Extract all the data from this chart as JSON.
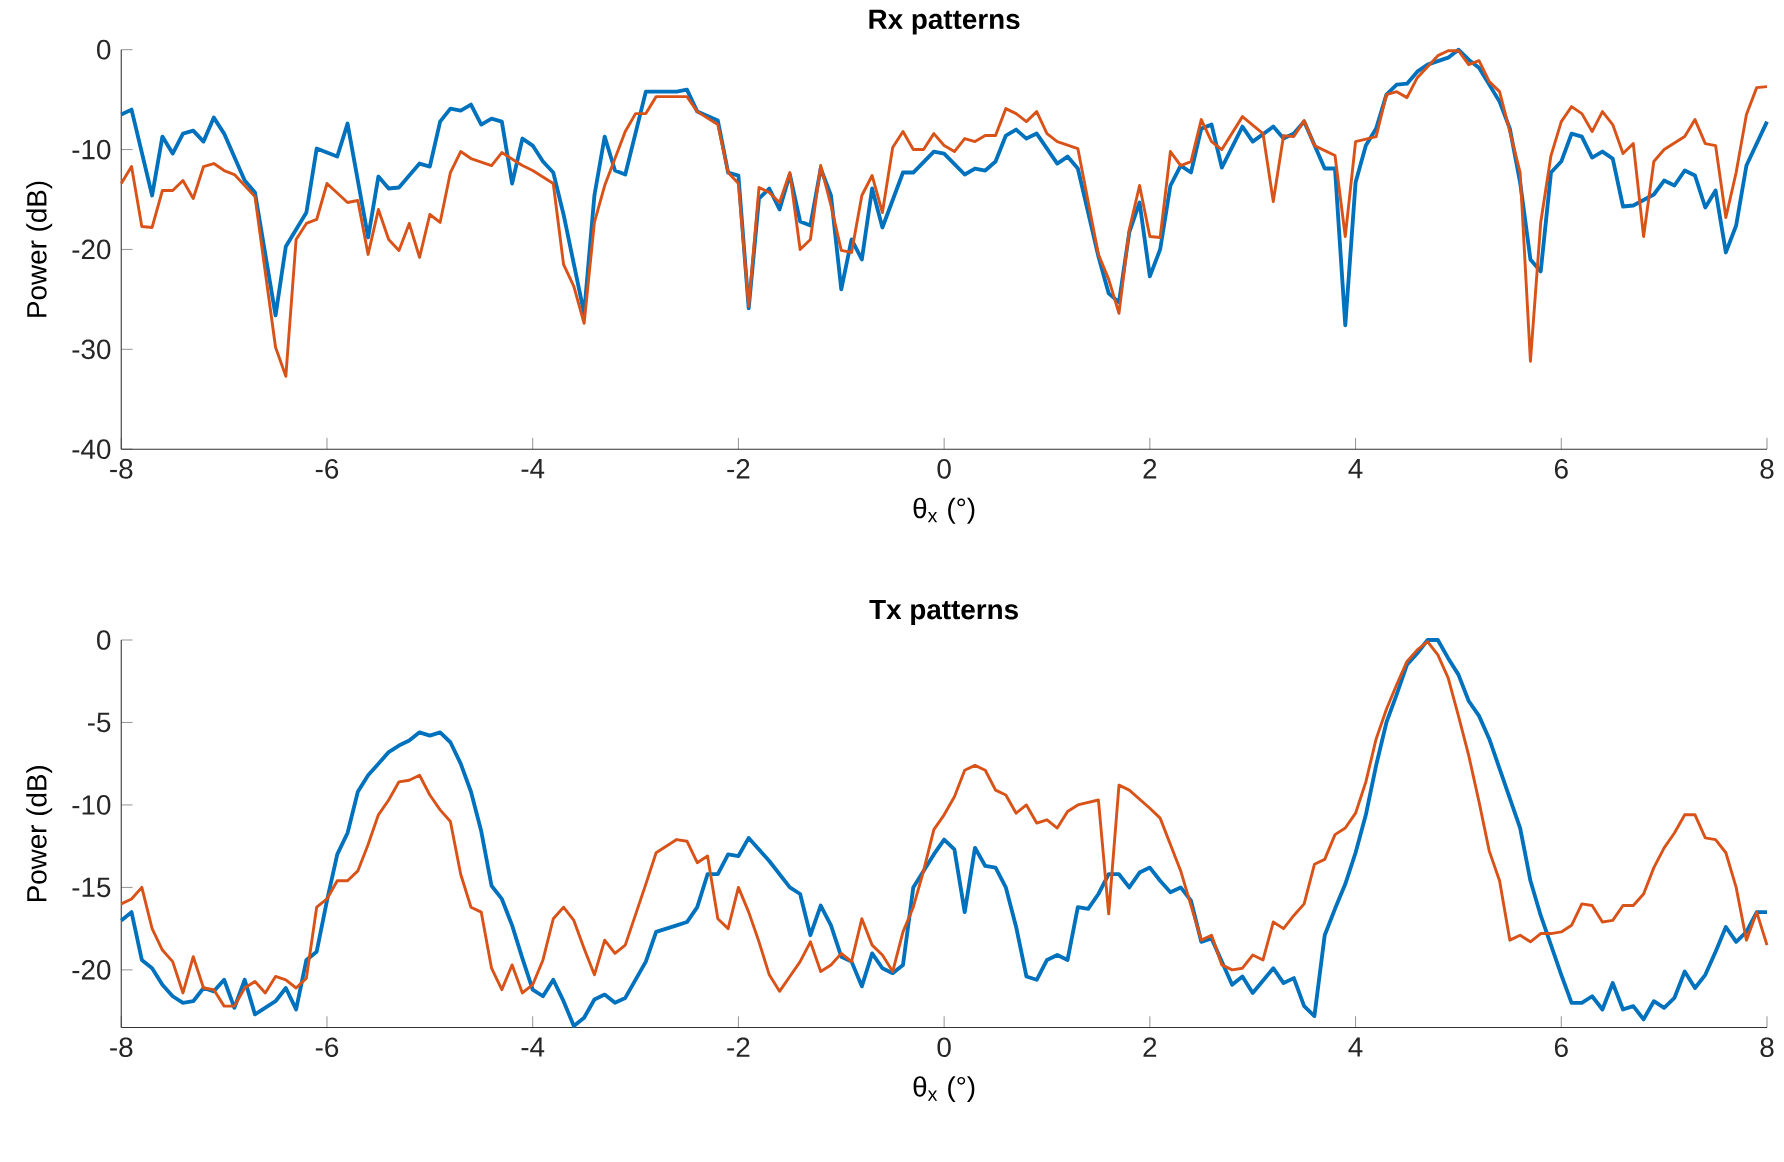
{
  "chart_data": [
    {
      "type": "line",
      "title": "Rx patterns",
      "xlabel": "θ$_{x}$ (°)",
      "ylabel": "Power (dB)",
      "xlim": [
        -8,
        8
      ],
      "xticks": [
        -8,
        -6,
        -4,
        -2,
        0,
        2,
        4,
        6,
        8
      ],
      "ylim": [
        -40,
        0
      ],
      "yticks": [
        -40,
        -30,
        -20,
        -10,
        0
      ],
      "grid": false,
      "line_style": "solid",
      "series": [
        {
          "color": "#0072bd",
          "x": [
            -8,
            -7.9,
            -7.7,
            -7.6,
            -7.5,
            -7.4,
            -7.3,
            -7.2,
            -7.1,
            -7.0,
            -6.8,
            -6.7,
            -6.5,
            -6.4,
            -6.2,
            -6.1,
            -5.9,
            -5.8,
            -5.6,
            -5.5,
            -5.4,
            -5.3,
            -5.1,
            -5.0,
            -4.9,
            -4.8,
            -4.7,
            -4.6,
            -4.5,
            -4.4,
            -4.3,
            -4.2,
            -4.1,
            -4.0,
            -3.9,
            -3.8,
            -3.7,
            -3.5,
            -3.4,
            -3.3,
            -3.2,
            -3.1,
            -2.9,
            -2.6,
            -2.5,
            -2.4,
            -2.2,
            -2.1,
            -2.0,
            -1.9,
            -1.8,
            -1.7,
            -1.6,
            -1.5,
            -1.4,
            -1.3,
            -1.2,
            -1.1,
            -1.0,
            -0.9,
            -0.8,
            -0.7,
            -0.6,
            -0.4,
            -0.3,
            -0.1,
            0,
            0.2,
            0.3,
            0.4,
            0.5,
            0.6,
            0.7,
            0.8,
            0.9,
            1.1,
            1.2,
            1.3,
            1.5,
            1.6,
            1.7,
            1.8,
            1.9,
            2.0,
            2.1,
            2.2,
            2.3,
            2.4,
            2.5,
            2.6,
            2.7,
            2.9,
            3.0,
            3.2,
            3.3,
            3.4,
            3.5,
            3.7,
            3.8,
            3.9,
            4.0,
            4.1,
            4.2,
            4.3,
            4.4,
            4.5,
            4.6,
            4.7,
            4.9,
            5.0,
            5.1,
            5.2,
            5.3,
            5.4,
            5.5,
            5.6,
            5.7,
            5.8,
            5.9,
            6.0,
            6.1,
            6.2,
            6.3,
            6.4,
            6.5,
            6.6,
            6.7,
            6.9,
            7.0,
            7.1,
            7.2,
            7.3,
            7.4,
            7.5,
            7.6,
            7.7,
            7.8,
            8.0
          ],
          "values": [
            -6.5,
            -6.0,
            -14.6,
            -8.7,
            -10.4,
            -8.4,
            -8.1,
            -9.2,
            -6.8,
            -8.4,
            -13.1,
            -14.3,
            -26.6,
            -19.7,
            -16.3,
            -9.9,
            -10.7,
            -7.4,
            -18.8,
            -12.7,
            -13.9,
            -13.8,
            -11.4,
            -11.7,
            -7.2,
            -5.9,
            -6.1,
            -5.5,
            -7.5,
            -6.9,
            -7.2,
            -13.4,
            -8.9,
            -9.6,
            -11.2,
            -12.3,
            -16.5,
            -26.4,
            -14.6,
            -8.7,
            -12.1,
            -12.5,
            -4.2,
            -4.2,
            -4.0,
            -6.2,
            -7.1,
            -12.3,
            -12.6,
            -25.9,
            -14.9,
            -13.9,
            -16.0,
            -12.5,
            -17.2,
            -17.6,
            -11.9,
            -14.6,
            -24.0,
            -19.0,
            -21.0,
            -13.9,
            -17.8,
            -12.3,
            -12.3,
            -10.2,
            -10.4,
            -12.5,
            -11.9,
            -12.1,
            -11.2,
            -8.6,
            -8.0,
            -8.9,
            -8.4,
            -11.4,
            -10.7,
            -11.9,
            -20.7,
            -24.4,
            -25.3,
            -18.3,
            -15.3,
            -22.7,
            -20.0,
            -13.6,
            -11.6,
            -12.3,
            -7.9,
            -7.5,
            -11.8,
            -7.7,
            -9.2,
            -7.7,
            -8.9,
            -8.4,
            -7.2,
            -11.9,
            -11.9,
            -27.6,
            -13.3,
            -9.6,
            -7.9,
            -4.5,
            -3.5,
            -3.4,
            -2.2,
            -1.5,
            -0.8,
            0,
            -1.0,
            -1.8,
            -3.5,
            -5.2,
            -7.9,
            -13.3,
            -21.0,
            -22.2,
            -12.3,
            -11.2,
            -8.4,
            -8.7,
            -10.8,
            -10.2,
            -10.9,
            -15.7,
            -15.6,
            -14.5,
            -13.1,
            -13.6,
            -12.1,
            -12.6,
            -15.8,
            -14.1,
            -20.3,
            -17.6,
            -11.6,
            -7.2
          ]
        },
        {
          "color": "#d95319",
          "x": [
            -8,
            -7.9,
            -7.8,
            -7.7,
            -7.6,
            -7.5,
            -7.4,
            -7.3,
            -7.2,
            -7.1,
            -7.0,
            -6.9,
            -6.7,
            -6.5,
            -6.4,
            -6.3,
            -6.2,
            -6.1,
            -6.0,
            -5.8,
            -5.7,
            -5.6,
            -5.5,
            -5.4,
            -5.3,
            -5.2,
            -5.1,
            -5.0,
            -4.9,
            -4.8,
            -4.7,
            -4.6,
            -4.4,
            -4.3,
            -4.1,
            -4.0,
            -3.8,
            -3.7,
            -3.6,
            -3.5,
            -3.4,
            -3.3,
            -3.1,
            -3.0,
            -2.9,
            -2.8,
            -2.6,
            -2.5,
            -2.4,
            -2.2,
            -2.1,
            -2.0,
            -1.9,
            -1.8,
            -1.7,
            -1.6,
            -1.5,
            -1.4,
            -1.3,
            -1.2,
            -1.1,
            -1.0,
            -0.9,
            -0.8,
            -0.7,
            -0.6,
            -0.5,
            -0.4,
            -0.3,
            -0.2,
            -0.1,
            0,
            0.1,
            0.2,
            0.3,
            0.4,
            0.5,
            0.6,
            0.7,
            0.8,
            0.9,
            1.0,
            1.1,
            1.3,
            1.5,
            1.6,
            1.7,
            1.8,
            1.9,
            2.0,
            2.1,
            2.2,
            2.3,
            2.4,
            2.5,
            2.6,
            2.7,
            2.9,
            3.1,
            3.2,
            3.3,
            3.4,
            3.5,
            3.6,
            3.8,
            3.9,
            4.0,
            4.2,
            4.3,
            4.4,
            4.5,
            4.6,
            4.8,
            4.9,
            5.0,
            5.1,
            5.2,
            5.3,
            5.4,
            5.5,
            5.6,
            5.7,
            5.8,
            5.9,
            6.0,
            6.1,
            6.2,
            6.3,
            6.4,
            6.5,
            6.6,
            6.7,
            6.8,
            6.9,
            7.0,
            7.2,
            7.3,
            7.4,
            7.5,
            7.6,
            7.7,
            7.8,
            7.9,
            8.0
          ],
          "values": [
            -13.4,
            -11.7,
            -17.7,
            -17.8,
            -14.1,
            -14.1,
            -13.1,
            -14.9,
            -11.7,
            -11.4,
            -12.1,
            -12.5,
            -14.7,
            -29.8,
            -32.7,
            -19.0,
            -17.4,
            -17.0,
            -13.4,
            -15.3,
            -15.1,
            -20.5,
            -16.0,
            -19.0,
            -20.1,
            -17.4,
            -20.8,
            -16.5,
            -17.3,
            -12.3,
            -10.2,
            -10.9,
            -11.6,
            -10.3,
            -11.6,
            -12.1,
            -13.4,
            -21.5,
            -23.7,
            -27.4,
            -17.3,
            -13.6,
            -8.2,
            -6.4,
            -6.4,
            -4.7,
            -4.7,
            -4.7,
            -6.2,
            -7.5,
            -12.3,
            -13.4,
            -25.7,
            -13.8,
            -14.3,
            -15.3,
            -12.3,
            -20.0,
            -19.0,
            -11.6,
            -15.6,
            -20.1,
            -20.3,
            -14.6,
            -12.6,
            -16.3,
            -9.8,
            -8.2,
            -10.0,
            -10.0,
            -8.4,
            -9.6,
            -10.2,
            -8.9,
            -9.2,
            -8.6,
            -8.6,
            -5.9,
            -6.4,
            -7.2,
            -6.2,
            -8.4,
            -9.2,
            -9.9,
            -20.5,
            -23.0,
            -26.4,
            -18.0,
            -13.6,
            -18.7,
            -18.8,
            -10.2,
            -11.6,
            -11.2,
            -7.0,
            -9.2,
            -10.0,
            -6.7,
            -8.4,
            -15.2,
            -8.6,
            -8.7,
            -7.1,
            -9.6,
            -10.6,
            -18.7,
            -9.2,
            -8.7,
            -4.5,
            -4.2,
            -4.8,
            -2.8,
            -0.6,
            -0.1,
            -0.1,
            -1.5,
            -1.1,
            -3.2,
            -4.2,
            -8.2,
            -12.3,
            -31.2,
            -17.3,
            -10.6,
            -7.2,
            -5.7,
            -6.4,
            -8.2,
            -6.2,
            -7.5,
            -10.4,
            -9.4,
            -18.7,
            -11.2,
            -10.0,
            -8.7,
            -7.0,
            -9.4,
            -9.6,
            -16.8,
            -12.3,
            -6.5,
            -3.8,
            -3.7
          ]
        }
      ]
    },
    {
      "type": "line",
      "title": "Tx patterns",
      "xlabel": "θ$_{x}$ (°)",
      "ylabel": "Power (dB)",
      "xlim": [
        -8,
        8
      ],
      "xticks": [
        -8,
        -6,
        -4,
        -2,
        0,
        2,
        4,
        6,
        8
      ],
      "ylim": [
        -23.5,
        0
      ],
      "yticks": [
        -20,
        -15,
        -10,
        -5,
        0
      ],
      "grid": false,
      "line_style": "solid",
      "series": [
        {
          "color": "#0072bd",
          "x": [
            -8,
            -7.9,
            -7.8,
            -7.7,
            -7.6,
            -7.5,
            -7.4,
            -7.3,
            -7.2,
            -7.1,
            -7.0,
            -6.9,
            -6.8,
            -6.7,
            -6.5,
            -6.4,
            -6.3,
            -6.2,
            -6.1,
            -6.0,
            -5.9,
            -5.8,
            -5.7,
            -5.6,
            -5.5,
            -5.4,
            -5.3,
            -5.2,
            -5.1,
            -5.0,
            -4.9,
            -4.8,
            -4.7,
            -4.6,
            -4.5,
            -4.4,
            -4.3,
            -4.2,
            -4.1,
            -4.0,
            -3.9,
            -3.8,
            -3.7,
            -3.6,
            -3.5,
            -3.4,
            -3.3,
            -3.2,
            -3.1,
            -2.9,
            -2.8,
            -2.6,
            -2.5,
            -2.4,
            -2.3,
            -2.2,
            -2.1,
            -2.0,
            -1.9,
            -1.7,
            -1.5,
            -1.4,
            -1.3,
            -1.2,
            -1.1,
            -1.0,
            -0.9,
            -0.8,
            -0.7,
            -0.6,
            -0.5,
            -0.4,
            -0.3,
            -0.2,
            -0.1,
            0,
            0.1,
            0.2,
            0.3,
            0.4,
            0.5,
            0.6,
            0.7,
            0.8,
            0.9,
            1.0,
            1.1,
            1.2,
            1.3,
            1.4,
            1.5,
            1.6,
            1.7,
            1.8,
            1.9,
            2.0,
            2.1,
            2.2,
            2.3,
            2.4,
            2.5,
            2.6,
            2.7,
            2.8,
            2.9,
            3.0,
            3.2,
            3.3,
            3.4,
            3.5,
            3.6,
            3.7,
            3.8,
            3.9,
            4.0,
            4.1,
            4.2,
            4.3,
            4.4,
            4.5,
            4.6,
            4.7,
            4.8,
            4.9,
            5.0,
            5.1,
            5.2,
            5.3,
            5.4,
            5.5,
            5.6,
            5.7,
            5.8,
            5.9,
            6.0,
            6.1,
            6.2,
            6.3,
            6.4,
            6.5,
            6.6,
            6.7,
            6.8,
            6.9,
            7.0,
            7.1,
            7.2,
            7.3,
            7.4,
            7.5,
            7.6,
            7.7,
            7.8,
            7.9,
            8.0
          ],
          "values": [
            -17.0,
            -16.5,
            -19.4,
            -19.9,
            -20.9,
            -21.6,
            -22.0,
            -21.9,
            -21.1,
            -21.3,
            -20.6,
            -22.3,
            -20.6,
            -22.7,
            -21.9,
            -21.1,
            -22.4,
            -19.4,
            -18.9,
            -15.8,
            -13.0,
            -11.7,
            -9.2,
            -8.2,
            -7.5,
            -6.8,
            -6.4,
            -6.1,
            -5.6,
            -5.8,
            -5.6,
            -6.2,
            -7.5,
            -9.2,
            -11.6,
            -14.9,
            -15.7,
            -17.3,
            -19.3,
            -21.2,
            -21.6,
            -20.6,
            -21.9,
            -23.4,
            -22.9,
            -21.8,
            -21.5,
            -22.0,
            -21.7,
            -19.5,
            -17.7,
            -17.3,
            -17.1,
            -16.2,
            -14.2,
            -14.2,
            -13.0,
            -13.1,
            -12.0,
            -13.4,
            -15.0,
            -15.4,
            -17.9,
            -16.1,
            -17.3,
            -19.2,
            -19.5,
            -21.0,
            -19.0,
            -19.9,
            -20.2,
            -19.7,
            -15.0,
            -14.0,
            -13.0,
            -12.1,
            -12.7,
            -16.5,
            -12.6,
            -13.7,
            -13.8,
            -15.0,
            -17.4,
            -20.4,
            -20.6,
            -19.4,
            -19.1,
            -19.4,
            -16.2,
            -16.3,
            -15.4,
            -14.2,
            -14.2,
            -15.0,
            -14.1,
            -13.8,
            -14.6,
            -15.3,
            -15.0,
            -15.8,
            -18.3,
            -18.1,
            -19.5,
            -20.9,
            -20.4,
            -21.4,
            -19.9,
            -20.8,
            -20.5,
            -22.2,
            -22.8,
            -17.9,
            -16.3,
            -14.8,
            -12.9,
            -10.6,
            -7.6,
            -5.0,
            -3.3,
            -1.5,
            -0.8,
            0,
            0,
            -1.1,
            -2.1,
            -3.7,
            -4.6,
            -6.0,
            -7.8,
            -9.6,
            -11.4,
            -14.6,
            -16.7,
            -18.5,
            -20.3,
            -22.0,
            -22.0,
            -21.6,
            -22.4,
            -20.8,
            -22.4,
            -22.2,
            -23.0,
            -21.9,
            -22.3,
            -21.7,
            -20.1,
            -21.1,
            -20.3,
            -18.9,
            -17.4,
            -18.3,
            -17.7,
            -16.5,
            -16.5
          ]
        },
        {
          "color": "#d95319",
          "x": [
            -8,
            -7.9,
            -7.8,
            -7.7,
            -7.6,
            -7.5,
            -7.4,
            -7.3,
            -7.2,
            -7.1,
            -7.0,
            -6.9,
            -6.8,
            -6.7,
            -6.6,
            -6.5,
            -6.4,
            -6.3,
            -6.2,
            -6.1,
            -6.0,
            -5.9,
            -5.8,
            -5.7,
            -5.6,
            -5.5,
            -5.4,
            -5.3,
            -5.2,
            -5.1,
            -5.0,
            -4.9,
            -4.8,
            -4.7,
            -4.6,
            -4.5,
            -4.4,
            -4.3,
            -4.2,
            -4.1,
            -4.0,
            -3.9,
            -3.8,
            -3.7,
            -3.6,
            -3.5,
            -3.4,
            -3.3,
            -3.2,
            -3.1,
            -2.9,
            -2.8,
            -2.6,
            -2.5,
            -2.4,
            -2.3,
            -2.2,
            -2.1,
            -2.0,
            -1.9,
            -1.8,
            -1.7,
            -1.6,
            -1.5,
            -1.4,
            -1.3,
            -1.2,
            -1.1,
            -1.0,
            -0.9,
            -0.8,
            -0.7,
            -0.6,
            -0.5,
            -0.4,
            -0.3,
            -0.2,
            -0.1,
            0,
            0.1,
            0.2,
            0.3,
            0.4,
            0.5,
            0.6,
            0.7,
            0.8,
            0.9,
            1.0,
            1.1,
            1.2,
            1.3,
            1.5,
            1.6,
            1.7,
            1.8,
            2.0,
            2.1,
            2.3,
            2.5,
            2.6,
            2.7,
            2.8,
            2.9,
            3.0,
            3.1,
            3.2,
            3.3,
            3.4,
            3.5,
            3.6,
            3.7,
            3.8,
            3.9,
            4.0,
            4.1,
            4.2,
            4.3,
            4.4,
            4.5,
            4.6,
            4.7,
            4.8,
            4.9,
            5.0,
            5.1,
            5.2,
            5.3,
            5.4,
            5.5,
            5.6,
            5.7,
            5.8,
            5.9,
            6.0,
            6.1,
            6.2,
            6.3,
            6.4,
            6.5,
            6.6,
            6.7,
            6.8,
            6.9,
            7.0,
            7.1,
            7.2,
            7.3,
            7.4,
            7.5,
            7.6,
            7.7,
            7.8,
            7.9,
            8.0
          ],
          "values": [
            -16.0,
            -15.7,
            -15.0,
            -17.5,
            -18.8,
            -19.5,
            -21.4,
            -19.2,
            -21.1,
            -21.2,
            -22.2,
            -22.2,
            -21.1,
            -20.7,
            -21.4,
            -20.4,
            -20.6,
            -21.1,
            -20.5,
            -16.2,
            -15.7,
            -14.6,
            -14.6,
            -14.0,
            -12.4,
            -10.6,
            -9.7,
            -8.6,
            -8.5,
            -8.2,
            -9.4,
            -10.3,
            -11.0,
            -14.2,
            -16.2,
            -16.5,
            -19.9,
            -21.2,
            -19.7,
            -21.4,
            -20.9,
            -19.4,
            -16.9,
            -16.2,
            -17.0,
            -18.7,
            -20.3,
            -18.2,
            -19.0,
            -18.5,
            -14.8,
            -12.9,
            -12.1,
            -12.2,
            -13.5,
            -13.1,
            -16.9,
            -17.5,
            -15.0,
            -16.5,
            -18.3,
            -20.3,
            -21.3,
            -20.4,
            -19.5,
            -18.3,
            -20.1,
            -19.7,
            -19.0,
            -19.5,
            -16.9,
            -18.5,
            -19.1,
            -20.1,
            -17.7,
            -16.2,
            -14.0,
            -11.5,
            -10.6,
            -9.5,
            -7.9,
            -7.6,
            -7.9,
            -9.1,
            -9.4,
            -10.5,
            -10.0,
            -11.1,
            -10.9,
            -11.4,
            -10.4,
            -10.0,
            -9.7,
            -16.6,
            -8.8,
            -9.1,
            -10.2,
            -10.8,
            -14.0,
            -18.2,
            -17.9,
            -19.7,
            -20.0,
            -19.9,
            -19.1,
            -19.4,
            -17.1,
            -17.5,
            -16.7,
            -16.0,
            -13.6,
            -13.3,
            -11.8,
            -11.4,
            -10.5,
            -8.6,
            -6.0,
            -4.2,
            -2.7,
            -1.3,
            -0.6,
            -0.1,
            -0.9,
            -2.3,
            -4.6,
            -7.0,
            -9.8,
            -12.8,
            -14.6,
            -18.2,
            -17.9,
            -18.3,
            -17.8,
            -17.8,
            -17.7,
            -17.3,
            -16.0,
            -16.1,
            -17.1,
            -17.0,
            -16.1,
            -16.1,
            -15.4,
            -13.8,
            -12.6,
            -11.7,
            -10.6,
            -10.6,
            -12.0,
            -12.1,
            -12.9,
            -15.0,
            -18.2,
            -16.5,
            -18.5
          ]
        }
      ]
    }
  ]
}
